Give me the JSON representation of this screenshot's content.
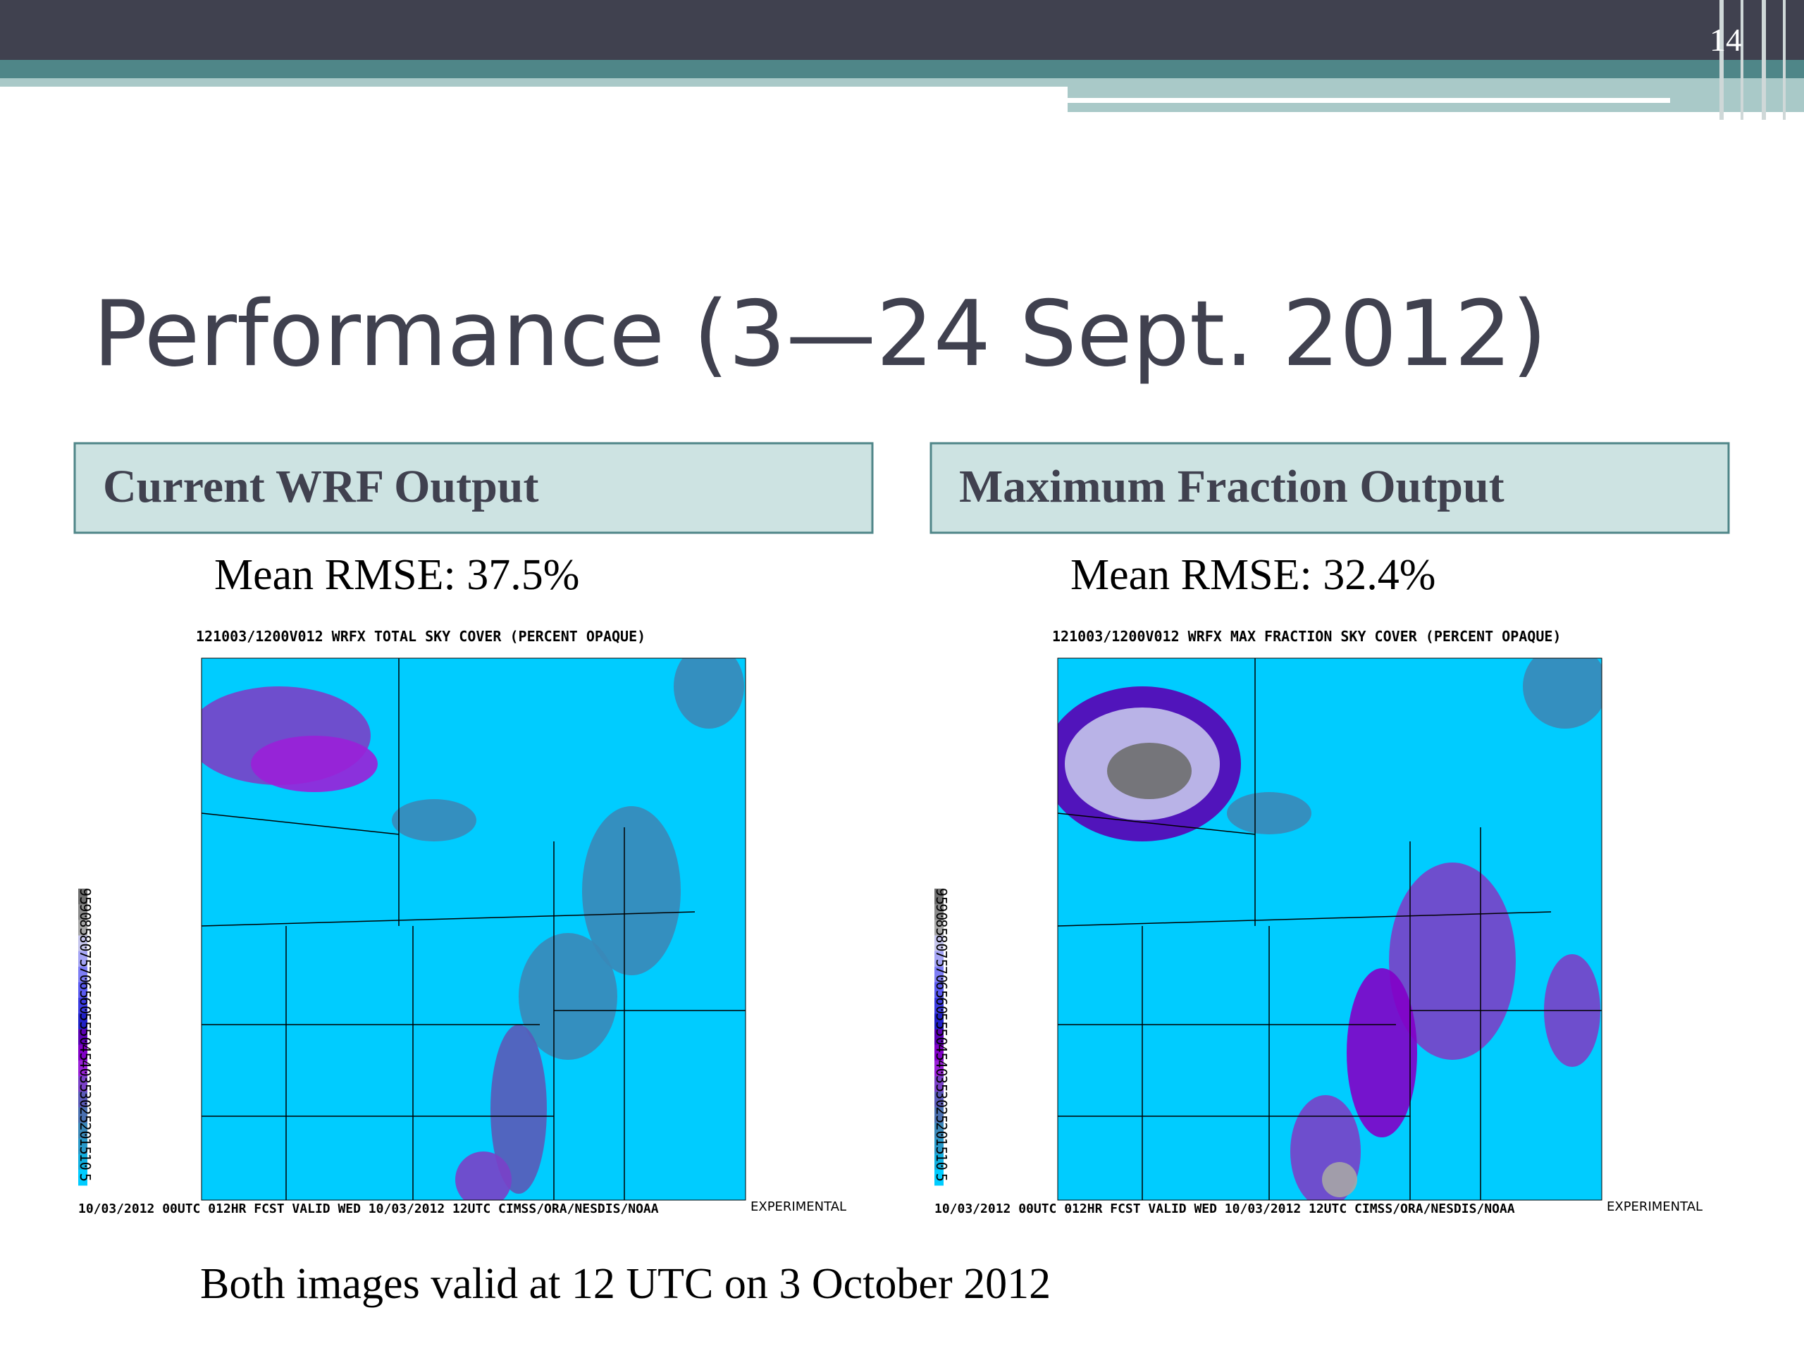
{
  "slide_number": "14",
  "title": "Performance (3—24 Sept. 2012)",
  "panels": [
    {
      "header": "Current WRF Output",
      "rmse": "Mean RMSE:  37.5%",
      "map_title": "121003/1200V012 WRFX  TOTAL SKY COVER (PERCENT OPAQUE)",
      "map_footer": "10/03/2012 00UTC 012HR FCST VALID WED 10/03/2012 12UTC   CIMSS/ORA/NESDIS/NOAA",
      "stamp": "EXPERIMENTAL"
    },
    {
      "header": "Maximum Fraction Output",
      "rmse": "Mean RMSE:  32.4%",
      "map_title": "121003/1200V012 WRFX  MAX FRACTION SKY COVER (PERCENT OPAQUE)",
      "map_footer": "10/03/2012 00UTC 012HR FCST VALID WED 10/03/2012 12UTC   CIMSS/ORA/NESDIS/NOAA",
      "stamp": "EXPERIMENTAL"
    }
  ],
  "colorbar_labels": [
    95,
    90,
    85,
    80,
    75,
    70,
    65,
    60,
    55,
    50,
    45,
    40,
    35,
    30,
    25,
    20,
    15,
    10,
    5
  ],
  "caption": "Both images valid at 12 UTC on 3 October 2012"
}
